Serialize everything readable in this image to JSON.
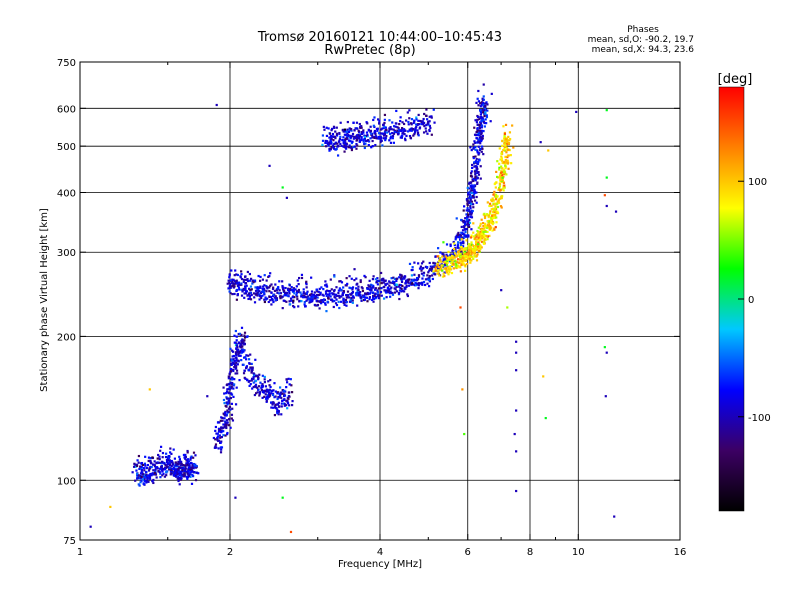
{
  "chart_data": {
    "type": "scatter",
    "title": "Tromsø 20160121 10:44:00–10:45:43",
    "subtitle": "RwPretec (8p)",
    "xlabel": "Frequency [MHz]",
    "ylabel": "Stationary phase Virtual Height [km]",
    "x_scale": "log",
    "y_scale": "log",
    "xlim": [
      1,
      16
    ],
    "ylim": [
      75,
      750
    ],
    "x_ticks": [
      1,
      2,
      4,
      6,
      8,
      10,
      16
    ],
    "x_tick_labels": [
      "1",
      "2",
      "4",
      "6",
      "8",
      "10",
      "16"
    ],
    "x_minor_ticks": [
      1.5,
      3,
      5,
      7,
      9
    ],
    "x_gridlines": [
      2,
      4,
      6,
      8,
      10
    ],
    "y_ticks": [
      75,
      100,
      200,
      300,
      400,
      500,
      600,
      750
    ],
    "y_tick_labels": [
      "75",
      "100",
      "200",
      "300",
      "400",
      "500",
      "600",
      "750"
    ],
    "y_gridlines": [
      100,
      200,
      300,
      400,
      500,
      600
    ],
    "grid": true,
    "stats_header": "Phases",
    "stats_lines": [
      "mean, sd,O: -90.2, 19.7",
      "mean, sd,X:  94.3, 23.6"
    ],
    "colorbar": {
      "label": "[deg]",
      "range": [
        -180,
        180
      ],
      "ticks": [
        100,
        0,
        -100
      ],
      "tick_labels": [
        "100",
        "0",
        "-100"
      ],
      "colormap": [
        "#000000",
        "#3c0064",
        "#0000ff",
        "#00c8ff",
        "#00ff00",
        "#ffff00",
        "#ff8000",
        "#ff0000"
      ]
    },
    "series": [
      {
        "mode": "O",
        "phase_mean": -90.2,
        "phase_sd": 19.7,
        "segments": [
          {
            "x": [
              2.0,
              2.1,
              2.25,
              2.4,
              2.6,
              2.8,
              3.0,
              3.25,
              3.5,
              3.75,
              4.0,
              4.3,
              4.6,
              5.0,
              5.4,
              5.8,
              6.0,
              6.1,
              6.2,
              6.3,
              6.4,
              6.45
            ],
            "y": [
              255,
              248,
              244,
              242,
              240,
              239,
              238,
              239,
              241,
              243,
              246,
              250,
              256,
              265,
              282,
              310,
              340,
              380,
              430,
              500,
              560,
              620
            ]
          },
          {
            "x": [
              1.88,
              1.95,
              2.0,
              2.05,
              2.1,
              2.2,
              2.35,
              2.5,
              2.65
            ],
            "y": [
              115,
              130,
              150,
              175,
              195,
              160,
              150,
              140,
              150
            ]
          },
          {
            "x": [
              1.3,
              1.35,
              1.42,
              1.5,
              1.55,
              1.6,
              1.65,
              1.7
            ],
            "y": [
              102,
              100,
              104,
              106,
              104,
              101,
              105,
              103
            ]
          },
          {
            "x": [
              3.1,
              3.3,
              3.5,
              3.7,
              4.0,
              4.3,
              4.7,
              5.1
            ],
            "y": [
              505,
              505,
              510,
              515,
              520,
              525,
              535,
              560
            ]
          }
        ]
      },
      {
        "mode": "X",
        "phase_mean": 94.3,
        "phase_sd": 23.6,
        "segments": [
          {
            "x": [
              5.2,
              5.5,
              5.8,
              6.0,
              6.2,
              6.4,
              6.6,
              6.8,
              7.0,
              7.1,
              7.2
            ],
            "y": [
              275,
              278,
              285,
              292,
              300,
              315,
              335,
              365,
              410,
              460,
              520
            ]
          }
        ]
      }
    ],
    "isolated_points": [
      {
        "x": 1.88,
        "y": 610,
        "phase": -100
      },
      {
        "x": 2.4,
        "y": 455,
        "phase": -100
      },
      {
        "x": 2.55,
        "y": 410,
        "phase": 20
      },
      {
        "x": 2.6,
        "y": 390,
        "phase": -100
      },
      {
        "x": 1.05,
        "y": 80,
        "phase": -100
      },
      {
        "x": 1.15,
        "y": 88,
        "phase": 100
      },
      {
        "x": 1.38,
        "y": 155,
        "phase": 100
      },
      {
        "x": 1.8,
        "y": 150,
        "phase": -100
      },
      {
        "x": 2.05,
        "y": 92,
        "phase": -100
      },
      {
        "x": 2.55,
        "y": 92,
        "phase": 20
      },
      {
        "x": 2.65,
        "y": 78,
        "phase": 150
      },
      {
        "x": 5.8,
        "y": 230,
        "phase": 150
      },
      {
        "x": 5.85,
        "y": 155,
        "phase": 120
      },
      {
        "x": 5.9,
        "y": 125,
        "phase": 40
      },
      {
        "x": 7.0,
        "y": 250,
        "phase": -100
      },
      {
        "x": 7.2,
        "y": 230,
        "phase": 60
      },
      {
        "x": 7.5,
        "y": 195,
        "phase": -100
      },
      {
        "x": 7.5,
        "y": 185,
        "phase": -100
      },
      {
        "x": 7.5,
        "y": 170,
        "phase": -100
      },
      {
        "x": 7.5,
        "y": 140,
        "phase": -100
      },
      {
        "x": 7.45,
        "y": 125,
        "phase": -100
      },
      {
        "x": 7.5,
        "y": 115,
        "phase": -100
      },
      {
        "x": 7.5,
        "y": 95,
        "phase": -100
      },
      {
        "x": 8.5,
        "y": 165,
        "phase": 100
      },
      {
        "x": 8.6,
        "y": 135,
        "phase": 20
      },
      {
        "x": 9.9,
        "y": 590,
        "phase": -100
      },
      {
        "x": 11.4,
        "y": 595,
        "phase": 20
      },
      {
        "x": 11.4,
        "y": 430,
        "phase": 20
      },
      {
        "x": 11.3,
        "y": 395,
        "phase": 150
      },
      {
        "x": 11.4,
        "y": 375,
        "phase": -100
      },
      {
        "x": 11.9,
        "y": 365,
        "phase": -100
      },
      {
        "x": 11.3,
        "y": 190,
        "phase": 20
      },
      {
        "x": 11.4,
        "y": 185,
        "phase": -100
      },
      {
        "x": 11.35,
        "y": 150,
        "phase": -100
      },
      {
        "x": 11.8,
        "y": 84,
        "phase": -100
      },
      {
        "x": 8.7,
        "y": 490,
        "phase": 100
      },
      {
        "x": 8.4,
        "y": 510,
        "phase": -100
      }
    ]
  }
}
